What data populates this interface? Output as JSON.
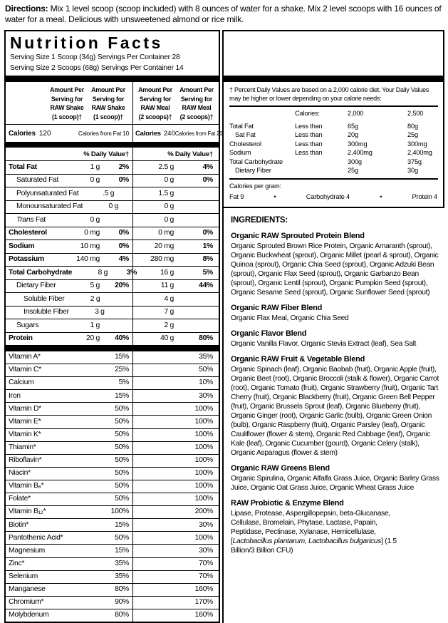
{
  "colors": {
    "text": "#000000",
    "background": "#ffffff",
    "rule": "#000000"
  },
  "directions": {
    "label": "Directions:",
    "text": " Mix 1 level scoop (scoop included) with 8 ounces of water for a shake. Mix 2 level scoops with 16 ounces of water for a meal. Delicious with unsweetened almond or rice milk."
  },
  "nutrition_panel": {
    "title": "Nutrition Facts",
    "serving_line1": "Serving Size 1 Scoop (34g) Servings Per Container 28",
    "serving_line2": "Serving Size 2 Scoops (68g) Servings Per Container 14",
    "headers": {
      "shake": "Amount Per\nServing for\nRAW Shake\n(1 scoop)†",
      "meal": "Amount Per\nServing for\nRAW Meal\n(2 scoops)†"
    },
    "calories": {
      "shake_label": "Calories",
      "shake_value": "120",
      "shake_from_fat": "Calories from Fat 10",
      "meal_label": "Calories",
      "meal_value": "240",
      "meal_from_fat": "Calories from Fat 20"
    },
    "daily_value_header": "% Daily Value†",
    "rows": [
      {
        "name": "Total Fat",
        "indent": "0",
        "bold": true,
        "shake_amt": "1 g",
        "shake_dv": "2%",
        "meal_amt": "2.5 g",
        "meal_dv": "4%"
      },
      {
        "name": "Saturated Fat",
        "indent": "1",
        "bold": false,
        "shake_amt": "0 g",
        "shake_dv": "0%",
        "meal_amt": "0 g",
        "meal_dv": "0%"
      },
      {
        "name": "Polyunsaturated Fat",
        "indent": "1",
        "bold": false,
        "shake_amt": ".5 g",
        "shake_dv": "",
        "meal_amt": "1.5 g",
        "meal_dv": ""
      },
      {
        "name": "Monounsaturated Fat",
        "indent": "1",
        "bold": false,
        "shake_amt": "0 g",
        "shake_dv": "",
        "meal_amt": "0 g",
        "meal_dv": ""
      },
      {
        "name_italic": "Trans",
        "name": " Fat",
        "indent": "1",
        "bold": false,
        "shake_amt": "0 g",
        "shake_dv": "",
        "meal_amt": "0 g",
        "meal_dv": ""
      },
      {
        "name": "Cholesterol",
        "indent": "0",
        "bold": true,
        "shake_amt": "0 mg",
        "shake_dv": "0%",
        "meal_amt": "0 mg",
        "meal_dv": "0%"
      },
      {
        "name": "Sodium",
        "indent": "0",
        "bold": true,
        "shake_amt": "10 mg",
        "shake_dv": "0%",
        "meal_amt": "20 mg",
        "meal_dv": "1%"
      },
      {
        "name": "Potassium",
        "indent": "0",
        "bold": true,
        "shake_amt": "140 mg",
        "shake_dv": "4%",
        "meal_amt": "280 mg",
        "meal_dv": "8%"
      },
      {
        "name": "Total Carbohydrate",
        "indent": "0",
        "bold": true,
        "shake_amt": "8 g",
        "shake_dv": "3%",
        "meal_amt": "16 g",
        "meal_dv": "5%"
      },
      {
        "name": "Dietary Fiber",
        "indent": "1",
        "bold": false,
        "shake_amt": "5 g",
        "shake_dv": "20%",
        "meal_amt": "11 g",
        "meal_dv": "44%"
      },
      {
        "name": "Soluble Fiber",
        "indent": "2",
        "bold": false,
        "shake_amt": "2 g",
        "shake_dv": "",
        "meal_amt": "4 g",
        "meal_dv": ""
      },
      {
        "name": "Insoluble Fiber",
        "indent": "2",
        "bold": false,
        "shake_amt": "3 g",
        "shake_dv": "",
        "meal_amt": "7 g",
        "meal_dv": ""
      },
      {
        "name": "Sugars",
        "indent": "1",
        "bold": false,
        "shake_amt": "1 g",
        "shake_dv": "",
        "meal_amt": "2 g",
        "meal_dv": ""
      },
      {
        "name": "Protein",
        "indent": "0",
        "bold": true,
        "shake_amt": "20 g",
        "shake_dv": "40%",
        "meal_amt": "40 g",
        "meal_dv": "80%"
      }
    ],
    "vitamins": [
      {
        "name": "Vitamin A*",
        "shake_dv": "15%",
        "meal_dv": "35%"
      },
      {
        "name": "Vitamin C*",
        "shake_dv": "25%",
        "meal_dv": "50%"
      },
      {
        "name": "Calcium",
        "shake_dv": "5%",
        "meal_dv": "10%"
      },
      {
        "name": "Iron",
        "shake_dv": "15%",
        "meal_dv": "30%"
      },
      {
        "name": "Vitamin D*",
        "shake_dv": "50%",
        "meal_dv": "100%"
      },
      {
        "name": "Vitamin E*",
        "shake_dv": "50%",
        "meal_dv": "100%"
      },
      {
        "name": "Vitamin K*",
        "shake_dv": "50%",
        "meal_dv": "100%"
      },
      {
        "name": "Thiamin*",
        "shake_dv": "50%",
        "meal_dv": "100%"
      },
      {
        "name": "Riboflavin*",
        "shake_dv": "50%",
        "meal_dv": "100%"
      },
      {
        "name": "Niacin*",
        "shake_dv": "50%",
        "meal_dv": "100%"
      },
      {
        "name": "Vitamin B₆*",
        "shake_dv": "50%",
        "meal_dv": "100%"
      },
      {
        "name": "Folate*",
        "shake_dv": "50%",
        "meal_dv": "100%"
      },
      {
        "name": "Vitamin B₁₂*",
        "shake_dv": "100%",
        "meal_dv": "200%"
      },
      {
        "name": "Biotin*",
        "shake_dv": "15%",
        "meal_dv": "30%"
      },
      {
        "name": "Pantothenic Acid*",
        "shake_dv": "50%",
        "meal_dv": "100%"
      },
      {
        "name": "Magnesium",
        "shake_dv": "15%",
        "meal_dv": "30%"
      },
      {
        "name": "Zinc*",
        "shake_dv": "35%",
        "meal_dv": "70%"
      },
      {
        "name": "Selenium",
        "shake_dv": "35%",
        "meal_dv": "70%"
      },
      {
        "name": "Manganese",
        "shake_dv": "80%",
        "meal_dv": "160%"
      },
      {
        "name": "Chromium*",
        "shake_dv": "90%",
        "meal_dv": "170%"
      },
      {
        "name": "Molybdenum",
        "shake_dv": "80%",
        "meal_dv": "160%"
      }
    ]
  },
  "footnote_panel": {
    "note": "† Percent Daily Values are based on a 2,000 calorie diet. Your Daily Values may be higher or lower depending on your calorie needs:",
    "calories_label": "Calories:",
    "col_2000": "2,000",
    "col_2500": "2,500",
    "dv_rows": [
      {
        "label": "Total Fat",
        "indent": "0",
        "qualifier": "Less than",
        "v2000": "65g",
        "v2500": "80g"
      },
      {
        "label": "Sat Fat",
        "indent": "1",
        "qualifier": "Less than",
        "v2000": "20g",
        "v2500": "25g"
      },
      {
        "label": "Cholesterol",
        "indent": "0",
        "qualifier": "Less than",
        "v2000": "300mg",
        "v2500": "300mg"
      },
      {
        "label": "Sodium",
        "indent": "0",
        "qualifier": "Less than",
        "v2000": "2,400mg",
        "v2500": "2,400mg"
      },
      {
        "label": "Total Carbohydrate",
        "indent": "0",
        "qualifier": "",
        "v2000": "300g",
        "v2500": "375g"
      },
      {
        "label": "Dietary Fiber",
        "indent": "1",
        "qualifier": "",
        "v2000": "25g",
        "v2500": "30g"
      }
    ],
    "calories_per_gram": {
      "label": "Calories per gram:",
      "fat": "Fat 9",
      "sep": "•",
      "carb": "Carbohydrate 4",
      "protein": "Protein 4"
    }
  },
  "ingredients": {
    "title": "INGREDIENTS:",
    "blends": [
      {
        "name": "Organic RAW Sprouted Protein Blend",
        "text": "Organic Sprouted Brown Rice Protein, Organic Amaranth (sprout), Organic Buckwheat (sprout), Organic Millet (pearl & sprout), Organic Quinoa (sprout), Organic Chia Seed (sprout), Organic Adzuki Bean (sprout), Organic Flax Seed (sprout), Organic Garbanzo Bean (sprout), Organic Lentil (sprout), Organic Pumpkin Seed (sprout), Organic Sesame Seed (sprout), Organic Sunflower Seed (sprout)"
      },
      {
        "name": "Organic RAW Fiber Blend",
        "text": "Organic Flax Meal, Organic Chia Seed"
      },
      {
        "name": "Organic Flavor Blend",
        "text": "Organic Vanilla Flavor, Organic Stevia Extract (leaf), Sea Salt"
      },
      {
        "name": "Organic RAW Fruit & Vegetable Blend",
        "text": "Organic Spinach (leaf), Organic Baobab (fruit), Organic Apple (fruit), Organic Beet (root), Organic Broccoli (stalk & flower), Organic Carrot (root), Organic Tomato (fruit), Organic Strawberry (fruit), Organic Tart Cherry (fruit), Organic Blackberry (fruit), Organic Green Bell Pepper (fruit), Organic Brussels Sprout (leaf), Organic Blueberry (fruit), Organic Ginger (root), Organic Garlic (bulb), Organic Green Onion (bulb), Organic Raspberry (fruit), Organic Parsley (leaf), Organic Cauliflower (flower & stem), Organic Red Cabbage (leaf), Organic Kale (leaf), Organic Cucumber (gourd), Organic Celery (stalk), Organic Asparagus (flower & stem)"
      },
      {
        "name": "Organic RAW Greens Blend",
        "text": "Organic Spirulina, Organic Alfalfa Grass Juice, Organic Barley Grass Juice, Organic Oat Grass Juice, Organic Wheat Grass Juice"
      },
      {
        "name": "RAW Probiotic & Enzyme Blend",
        "narrow": true,
        "text_pre": "Lipase, Protease, Aspergillopepsin, beta-Glucanase, Cellulase, Bromelain, Phytase, Lactase, Papain, Peptidase, Pectinase, Xylanase, Hemicellulase, [",
        "text_italic": "Lactobacillus plantarum, Lactobacillus bulgaricus",
        "text_post": "] (1.5 Billion/3 Billion CFU)"
      }
    ]
  }
}
